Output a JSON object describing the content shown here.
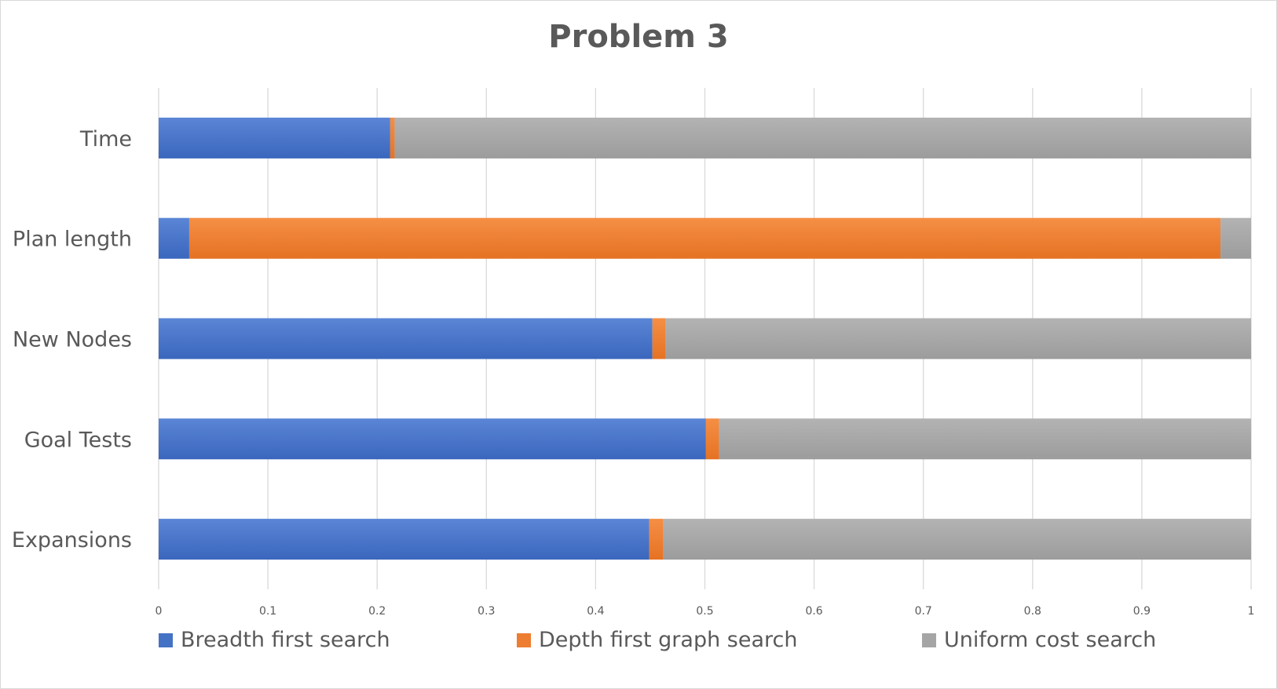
{
  "chart_data": {
    "type": "bar",
    "orientation": "horizontal",
    "stacked": "percent",
    "title": "Problem 3",
    "xlabel": "",
    "ylabel": "",
    "categories": [
      "Time",
      "Plan length",
      "New Nodes",
      "Goal Tests",
      "Expansions"
    ],
    "series": [
      {
        "name": "Breadth first search",
        "color": "#4472c4",
        "values": [
          0.212,
          0.028,
          0.452,
          0.501,
          0.449
        ]
      },
      {
        "name": "Depth first graph search",
        "color": "#ed7d31",
        "values": [
          0.004,
          0.944,
          0.012,
          0.012,
          0.013
        ]
      },
      {
        "name": "Uniform cost search",
        "color": "#a5a5a5",
        "values": [
          0.784,
          0.028,
          0.536,
          0.487,
          0.538
        ]
      }
    ],
    "xlim": [
      0,
      1
    ],
    "xticks": [
      "0",
      "0.1",
      "0.2",
      "0.3",
      "0.4",
      "0.5",
      "0.6",
      "0.7",
      "0.8",
      "0.9",
      "1"
    ],
    "grid": true,
    "legend_position": "bottom"
  }
}
